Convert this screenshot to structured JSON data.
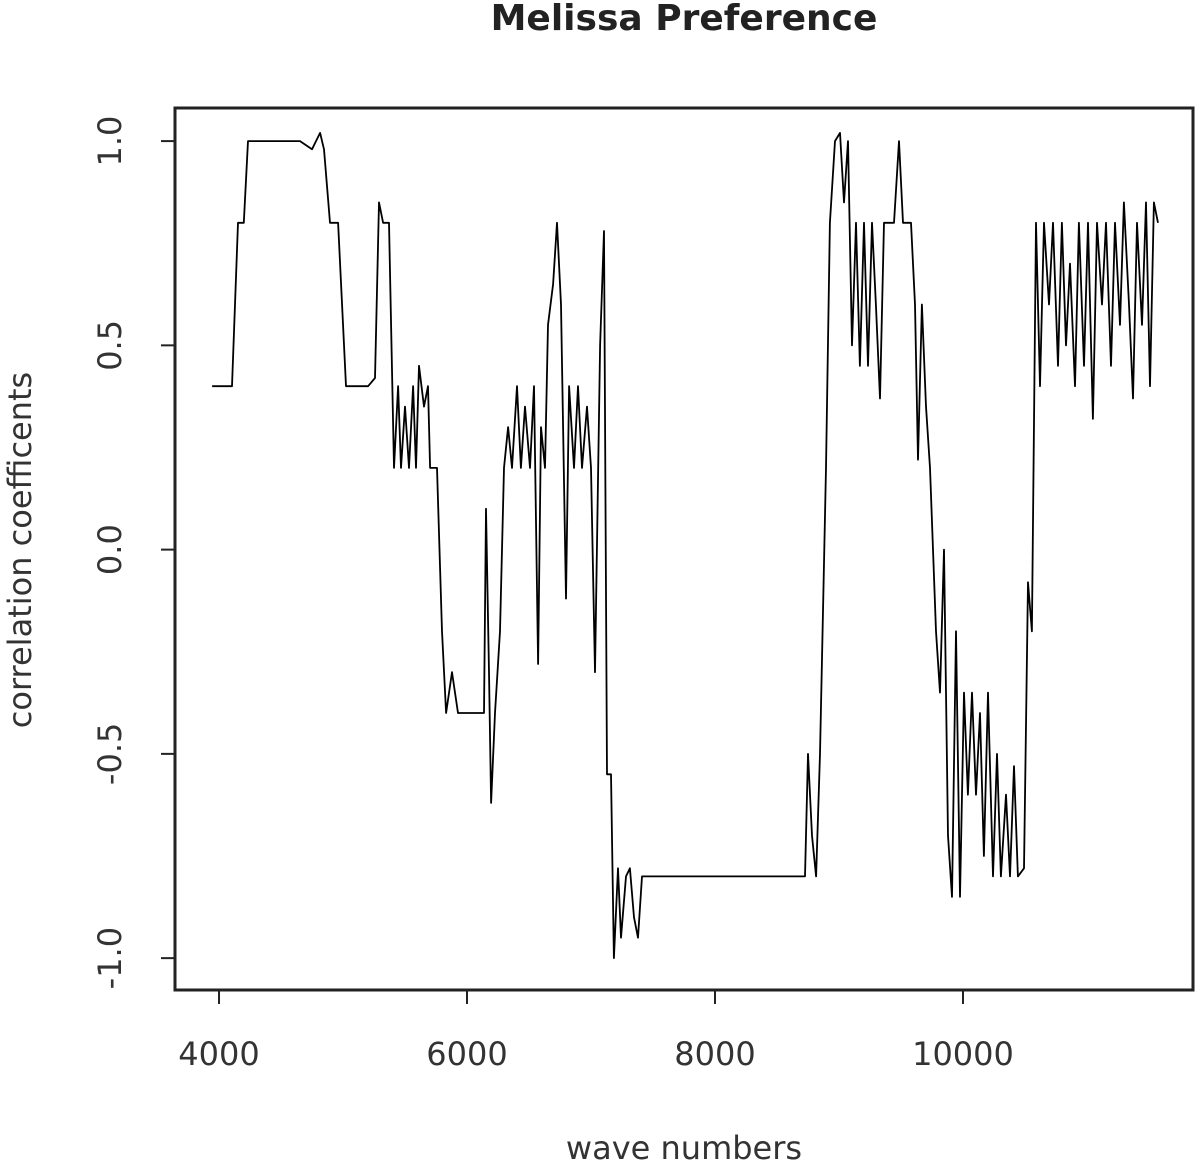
{
  "chart_data": {
    "type": "line",
    "title": "Melissa Preference",
    "x_label": "wave numbers",
    "y_label": "correlation coefficents",
    "color": "#000000",
    "x": [
      3944,
      4105,
      4153,
      4200,
      4234,
      4653,
      4750,
      4782,
      4815,
      4847,
      4895,
      4960,
      5024,
      5202,
      5258,
      5290,
      5323,
      5371,
      5411,
      5444,
      5468,
      5500,
      5532,
      5565,
      5589,
      5613,
      5653,
      5685,
      5702,
      5758,
      5798,
      5831,
      5879,
      5927,
      6137,
      6153,
      6177,
      6194,
      6226,
      6266,
      6298,
      6331,
      6363,
      6403,
      6435,
      6468,
      6508,
      6540,
      6573,
      6597,
      6629,
      6653,
      6694,
      6726,
      6758,
      6798,
      6823,
      6863,
      6895,
      6927,
      6968,
      7000,
      7032,
      7073,
      7105,
      7129,
      7161,
      7185,
      7218,
      7242,
      7282,
      7314,
      7347,
      7379,
      7411,
      8726,
      8750,
      8782,
      8815,
      8847,
      8895,
      8927,
      8968,
      9008,
      9040,
      9073,
      9105,
      9137,
      9169,
      9202,
      9234,
      9266,
      9298,
      9331,
      9363,
      9411,
      9444,
      9484,
      9516,
      9581,
      9613,
      9637,
      9669,
      9702,
      9734,
      9782,
      9815,
      9847,
      9879,
      9911,
      9944,
      9976,
      10008,
      10040,
      10073,
      10105,
      10137,
      10169,
      10202,
      10242,
      10274,
      10306,
      10347,
      10379,
      10411,
      10443,
      10492,
      10524,
      10556,
      10589,
      10621,
      10653,
      10694,
      10726,
      10766,
      10798,
      10831,
      10863,
      10903,
      10935,
      10976,
      11008,
      11048,
      11081,
      11121,
      11153,
      11194,
      11226,
      11266,
      11298,
      11339,
      11371,
      11403,
      11444,
      11476,
      11508,
      11540,
      11573
    ],
    "values": [
      0.4,
      0.4,
      0.8,
      0.8,
      1.0,
      1.0,
      0.98,
      1.0,
      1.02,
      0.98,
      0.8,
      0.8,
      0.4,
      0.4,
      0.42,
      0.85,
      0.8,
      0.8,
      0.2,
      0.4,
      0.2,
      0.35,
      0.2,
      0.4,
      0.2,
      0.45,
      0.35,
      0.4,
      0.2,
      0.2,
      -0.2,
      -0.4,
      -0.3,
      -0.4,
      -0.4,
      0.1,
      -0.3,
      -0.62,
      -0.4,
      -0.2,
      0.2,
      0.3,
      0.2,
      0.4,
      0.2,
      0.35,
      0.2,
      0.4,
      -0.28,
      0.3,
      0.2,
      0.55,
      0.65,
      0.8,
      0.6,
      -0.12,
      0.4,
      0.2,
      0.4,
      0.2,
      0.35,
      0.2,
      -0.3,
      0.5,
      0.78,
      -0.55,
      -0.55,
      -1.0,
      -0.78,
      -0.95,
      -0.8,
      -0.78,
      -0.9,
      -0.95,
      -0.8,
      -0.8,
      -0.5,
      -0.7,
      -0.8,
      -0.5,
      0.2,
      0.8,
      1.0,
      1.02,
      0.85,
      1.0,
      0.5,
      0.8,
      0.45,
      0.8,
      0.45,
      0.8,
      0.6,
      0.37,
      0.8,
      0.8,
      0.8,
      1.0,
      0.8,
      0.8,
      0.6,
      0.22,
      0.6,
      0.35,
      0.2,
      -0.2,
      -0.35,
      0.0,
      -0.7,
      -0.85,
      -0.2,
      -0.85,
      -0.35,
      -0.6,
      -0.35,
      -0.6,
      -0.4,
      -0.75,
      -0.35,
      -0.8,
      -0.5,
      -0.8,
      -0.6,
      -0.8,
      -0.53,
      -0.8,
      -0.78,
      -0.08,
      -0.2,
      0.8,
      0.4,
      0.8,
      0.6,
      0.8,
      0.45,
      0.8,
      0.5,
      0.7,
      0.4,
      0.8,
      0.45,
      0.8,
      0.32,
      0.8,
      0.6,
      0.8,
      0.45,
      0.8,
      0.55,
      0.85,
      0.6,
      0.37,
      0.8,
      0.55,
      0.85,
      0.4,
      0.85,
      0.8
    ],
    "xlim": [
      3645,
      11855
    ],
    "ylim": [
      -1.078,
      1.081
    ],
    "xticks": [
      4000,
      6000,
      8000,
      10000
    ],
    "yticks": [
      {
        "value": -1,
        "label": "-1.0"
      },
      -0.5,
      {
        "value": 0,
        "label": "0.0"
      },
      0.5,
      {
        "value": 1,
        "label": "1.0"
      }
    ]
  }
}
